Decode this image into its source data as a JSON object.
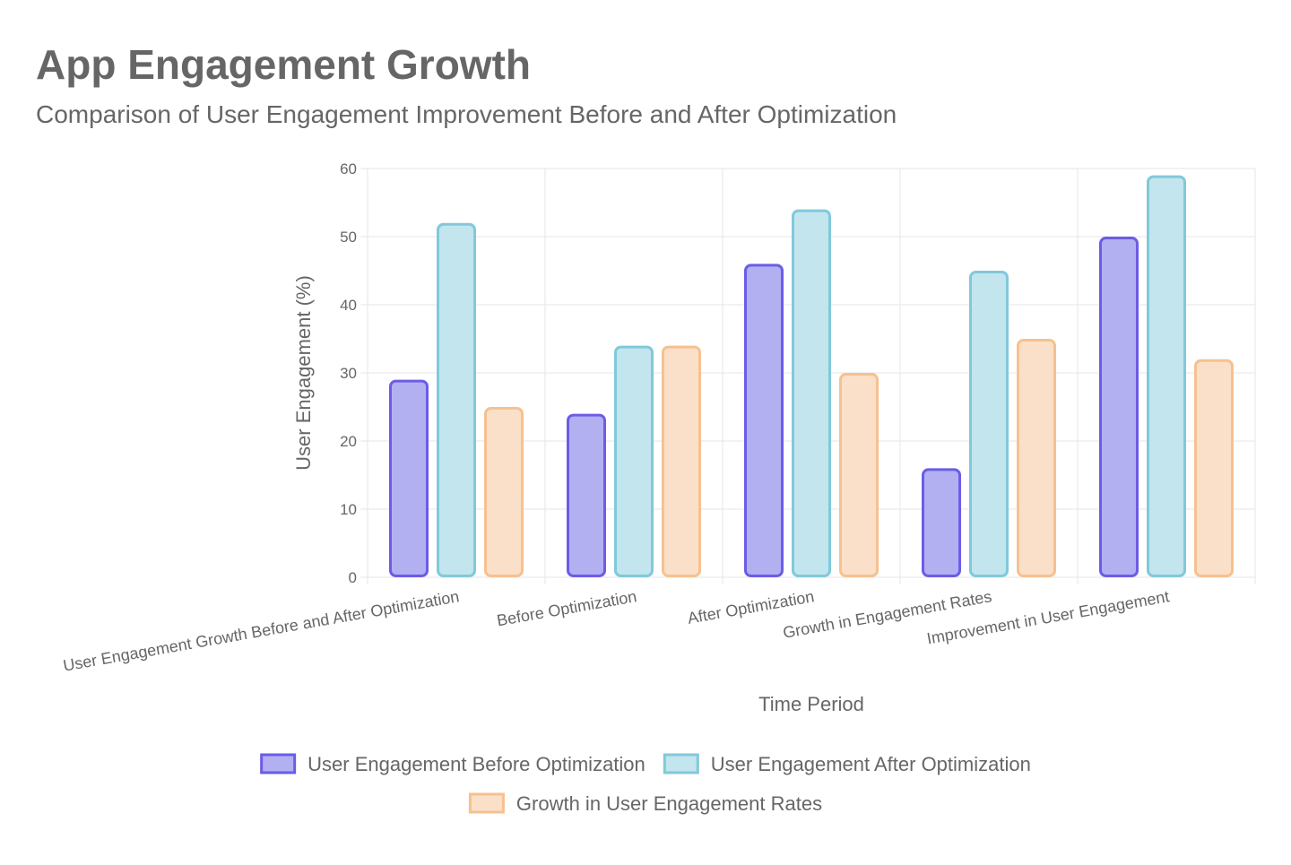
{
  "chart_data": {
    "type": "bar",
    "title": "App Engagement Growth",
    "subtitle": "Comparison of User Engagement Improvement Before and After Optimization",
    "xlabel": "Time Period",
    "ylabel": "User Engagement (%)",
    "ylim": [
      0,
      60
    ],
    "yticks": [
      0,
      10,
      20,
      30,
      40,
      50,
      60
    ],
    "grid": true,
    "legend_position": "bottom",
    "categories": [
      "User Engagement Growth Before and After Optimization",
      "Before Optimization",
      "After Optimization",
      "Growth in Engagement Rates",
      "Improvement in User Engagement"
    ],
    "series": [
      {
        "name": "User Engagement Before Optimization",
        "values": [
          29,
          24,
          46,
          16,
          50
        ],
        "fill": "#b3b0f2",
        "stroke": "#6c5ce7"
      },
      {
        "name": "User Engagement After Optimization",
        "values": [
          52,
          34,
          54,
          45,
          59
        ],
        "fill": "#c2e5ee",
        "stroke": "#81c9da"
      },
      {
        "name": "Growth in User Engagement Rates",
        "values": [
          25,
          34,
          30,
          35,
          32
        ],
        "fill": "#fae0c8",
        "stroke": "#f6c190"
      }
    ]
  }
}
